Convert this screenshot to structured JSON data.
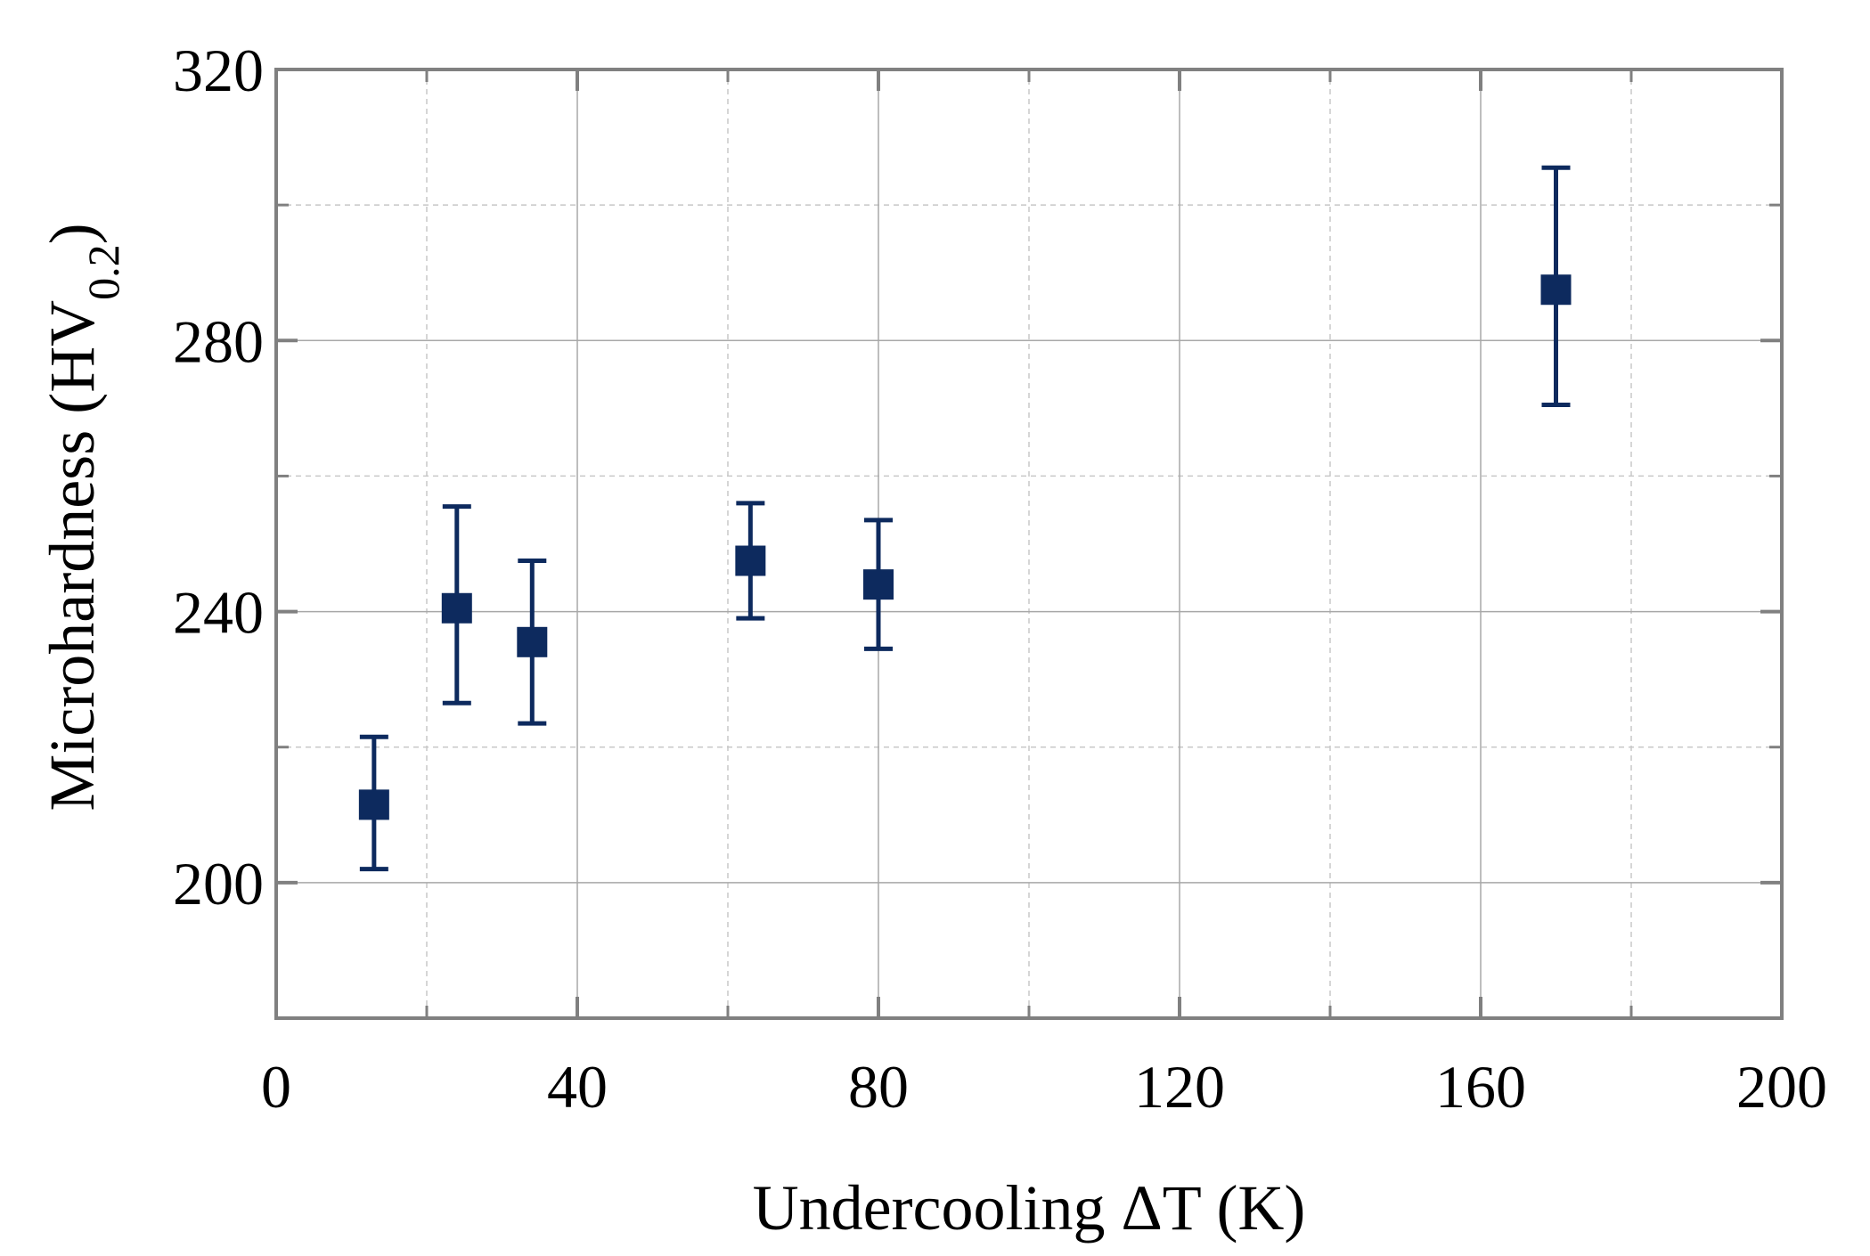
{
  "chart_data": {
    "type": "scatter",
    "title": "",
    "xlabel": "Undercooling ΔT (K)",
    "ylabel_main": "Microhardness (HV",
    "ylabel_sub": "0.2",
    "ylabel_end": ")",
    "xlim": [
      0,
      200
    ],
    "ylim": [
      180,
      320
    ],
    "x_ticks": [
      0,
      40,
      80,
      120,
      160,
      200
    ],
    "y_ticks": [
      200,
      240,
      280,
      320
    ],
    "x_minor_grid": [
      20,
      60,
      100,
      140,
      180
    ],
    "y_minor_grid": [
      220,
      260,
      300
    ],
    "grid": true,
    "marker": "square",
    "color": "#0d2a5e",
    "series": [
      {
        "name": "Microhardness",
        "points": [
          {
            "x": 13,
            "y": 211.5,
            "err_low": 202,
            "err_high": 221.5
          },
          {
            "x": 24,
            "y": 240.5,
            "err_low": 226.5,
            "err_high": 255.5
          },
          {
            "x": 34,
            "y": 235.5,
            "err_low": 223.5,
            "err_high": 247.5
          },
          {
            "x": 63,
            "y": 247.5,
            "err_low": 239,
            "err_high": 256
          },
          {
            "x": 80,
            "y": 244,
            "err_low": 234.5,
            "err_high": 253.5
          },
          {
            "x": 170,
            "y": 287.5,
            "err_low": 270.5,
            "err_high": 305.5
          }
        ]
      }
    ]
  }
}
